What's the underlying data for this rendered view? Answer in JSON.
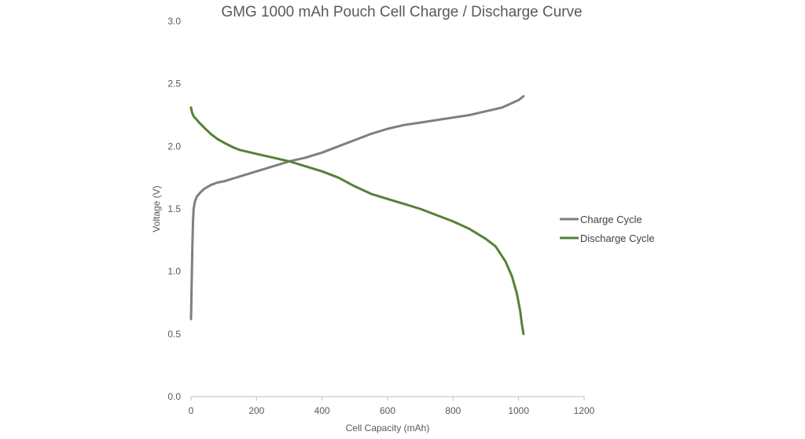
{
  "chart_data": {
    "type": "line",
    "title": "GMG 1000 mAh Pouch Cell Charge / Discharge Curve",
    "xlabel": "Cell Capacity (mAh)",
    "ylabel": "Voltage (V)",
    "xlim": [
      0,
      1200
    ],
    "ylim": [
      0,
      3.0
    ],
    "x_ticks": [
      0,
      200,
      400,
      600,
      800,
      1000,
      1200
    ],
    "y_ticks": [
      0.0,
      0.5,
      1.0,
      1.5,
      2.0,
      2.5,
      3.0
    ],
    "x_tick_labels": [
      "0",
      "200",
      "400",
      "600",
      "800",
      "1000",
      "1200"
    ],
    "y_tick_labels": [
      "0.0",
      "0.5",
      "1.0",
      "1.5",
      "2.0",
      "2.5",
      "3.0"
    ],
    "grid": false,
    "legend_position": "right",
    "series": [
      {
        "name": "Charge Cycle",
        "color": "#7f7f7f",
        "x": [
          0,
          2,
          4,
          6,
          8,
          12,
          18,
          28,
          40,
          60,
          80,
          100,
          150,
          200,
          250,
          300,
          350,
          400,
          450,
          500,
          550,
          600,
          650,
          700,
          750,
          800,
          850,
          900,
          950,
          1000,
          1015
        ],
        "y": [
          0.62,
          0.9,
          1.2,
          1.4,
          1.5,
          1.56,
          1.6,
          1.63,
          1.66,
          1.69,
          1.71,
          1.72,
          1.76,
          1.8,
          1.84,
          1.88,
          1.91,
          1.95,
          2.0,
          2.05,
          2.1,
          2.14,
          2.17,
          2.19,
          2.21,
          2.23,
          2.25,
          2.28,
          2.31,
          2.37,
          2.4
        ]
      },
      {
        "name": "Discharge Cycle",
        "color": "#548235",
        "x": [
          0,
          3,
          8,
          15,
          25,
          40,
          60,
          80,
          100,
          130,
          150,
          200,
          250,
          300,
          350,
          400,
          450,
          500,
          550,
          600,
          650,
          700,
          750,
          800,
          850,
          900,
          930,
          960,
          980,
          995,
          1005,
          1010,
          1015
        ],
        "y": [
          2.31,
          2.27,
          2.24,
          2.22,
          2.19,
          2.15,
          2.1,
          2.06,
          2.03,
          1.99,
          1.97,
          1.94,
          1.91,
          1.88,
          1.84,
          1.8,
          1.75,
          1.68,
          1.62,
          1.58,
          1.54,
          1.5,
          1.45,
          1.4,
          1.34,
          1.26,
          1.2,
          1.08,
          0.96,
          0.82,
          0.68,
          0.58,
          0.5
        ]
      }
    ]
  }
}
